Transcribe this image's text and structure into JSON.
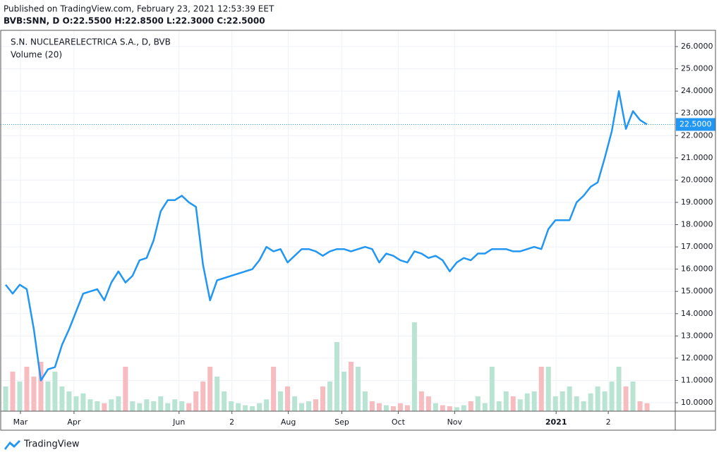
{
  "header": {
    "published": "Published on TradingView.com, February 23, 2021 12:53:39 EET",
    "quote": "BVB:SNN, D  O:22.5500 H:22.8500 L:22.3000 C:22.5000"
  },
  "chart_data": {
    "type": "line",
    "title": "S.N. NUCLEARELECTRICA S.A., D, BVB",
    "series": [
      {
        "name": "S.N. NUCLEARELECTRICA S.A.",
        "color": "#2196f3",
        "values": [
          15.3,
          14.9,
          15.3,
          15.1,
          13.3,
          11.0,
          11.5,
          11.6,
          12.6,
          13.3,
          14.1,
          14.9,
          15.0,
          15.1,
          14.6,
          15.4,
          15.9,
          15.4,
          15.7,
          16.4,
          16.5,
          17.3,
          18.6,
          19.1,
          19.1,
          19.3,
          19.0,
          18.8,
          16.2,
          14.6,
          15.5,
          15.6,
          15.7,
          15.8,
          15.9,
          16.0,
          16.4,
          17.0,
          16.8,
          16.9,
          16.3,
          16.6,
          16.9,
          16.9,
          16.8,
          16.6,
          16.8,
          16.9,
          16.9,
          16.8,
          16.9,
          17.0,
          16.9,
          16.3,
          16.7,
          16.6,
          16.4,
          16.3,
          16.8,
          16.7,
          16.5,
          16.6,
          16.4,
          15.9,
          16.3,
          16.5,
          16.4,
          16.7,
          16.7,
          16.9,
          16.9,
          16.9,
          16.8,
          16.8,
          16.9,
          17.0,
          16.9,
          17.8,
          18.2,
          18.2,
          18.2,
          19.0,
          19.3,
          19.7,
          19.9,
          21.0,
          22.2,
          24.0,
          22.3,
          23.1,
          22.7,
          22.5
        ]
      }
    ],
    "volume": {
      "name": "Volume (20)",
      "up_color": "#b9e4d3",
      "down_color": "#f7bcc0",
      "ylim": [
        0,
        100
      ],
      "values": [
        25,
        40,
        30,
        45,
        35,
        50,
        30,
        40,
        25,
        20,
        15,
        18,
        12,
        10,
        8,
        12,
        15,
        45,
        10,
        8,
        12,
        10,
        15,
        8,
        12,
        10,
        8,
        20,
        30,
        45,
        35,
        20,
        10,
        8,
        6,
        5,
        8,
        12,
        45,
        20,
        25,
        15,
        8,
        10,
        12,
        25,
        30,
        70,
        40,
        50,
        45,
        20,
        10,
        8,
        6,
        5,
        8,
        6,
        90,
        20,
        15,
        8,
        6,
        5,
        4,
        6,
        10,
        15,
        8,
        45,
        10,
        20,
        15,
        12,
        18,
        20,
        45,
        45,
        15,
        20,
        25,
        15,
        10,
        18,
        25,
        20,
        30,
        45,
        25,
        30,
        10,
        8
      ]
    },
    "xlim": [
      -0.7,
      95.0
    ],
    "xticks": [
      {
        "value": 2.1,
        "label": "Mar"
      },
      {
        "value": 9.7,
        "label": "Apr"
      },
      {
        "value": 24.6,
        "label": "Jun"
      },
      {
        "value": 32.1,
        "label": "2"
      },
      {
        "value": 40.1,
        "label": "Aug"
      },
      {
        "value": 47.7,
        "label": "Sep"
      },
      {
        "value": 55.7,
        "label": "Oct"
      },
      {
        "value": 63.7,
        "label": "Nov"
      },
      {
        "value": 78.1,
        "label": "2021"
      },
      {
        "value": 85.5,
        "label": "2"
      }
    ],
    "ylim": [
      9.62,
      26.73
    ],
    "yticks": [
      {
        "value": 10,
        "label": "10.0000"
      },
      {
        "value": 11,
        "label": "11.0000"
      },
      {
        "value": 12,
        "label": "12.0000"
      },
      {
        "value": 13,
        "label": "13.0000"
      },
      {
        "value": 14,
        "label": "14.0000"
      },
      {
        "value": 15,
        "label": "15.0000"
      },
      {
        "value": 16,
        "label": "16.0000"
      },
      {
        "value": 17,
        "label": "17.0000"
      },
      {
        "value": 18,
        "label": "18.0000"
      },
      {
        "value": 19,
        "label": "19.0000"
      },
      {
        "value": 20,
        "label": "20.0000"
      },
      {
        "value": 21,
        "label": "21.0000"
      },
      {
        "value": 22,
        "label": "22.0000"
      },
      {
        "value": 23,
        "label": "23.0000"
      },
      {
        "value": 24,
        "label": "24.0000"
      },
      {
        "value": 25,
        "label": "25.0000"
      },
      {
        "value": 26,
        "label": "26.0000"
      }
    ],
    "last_price": {
      "value": 22.5,
      "label": "22.5000"
    },
    "grid": true
  },
  "footer": {
    "brand": "TradingView"
  }
}
